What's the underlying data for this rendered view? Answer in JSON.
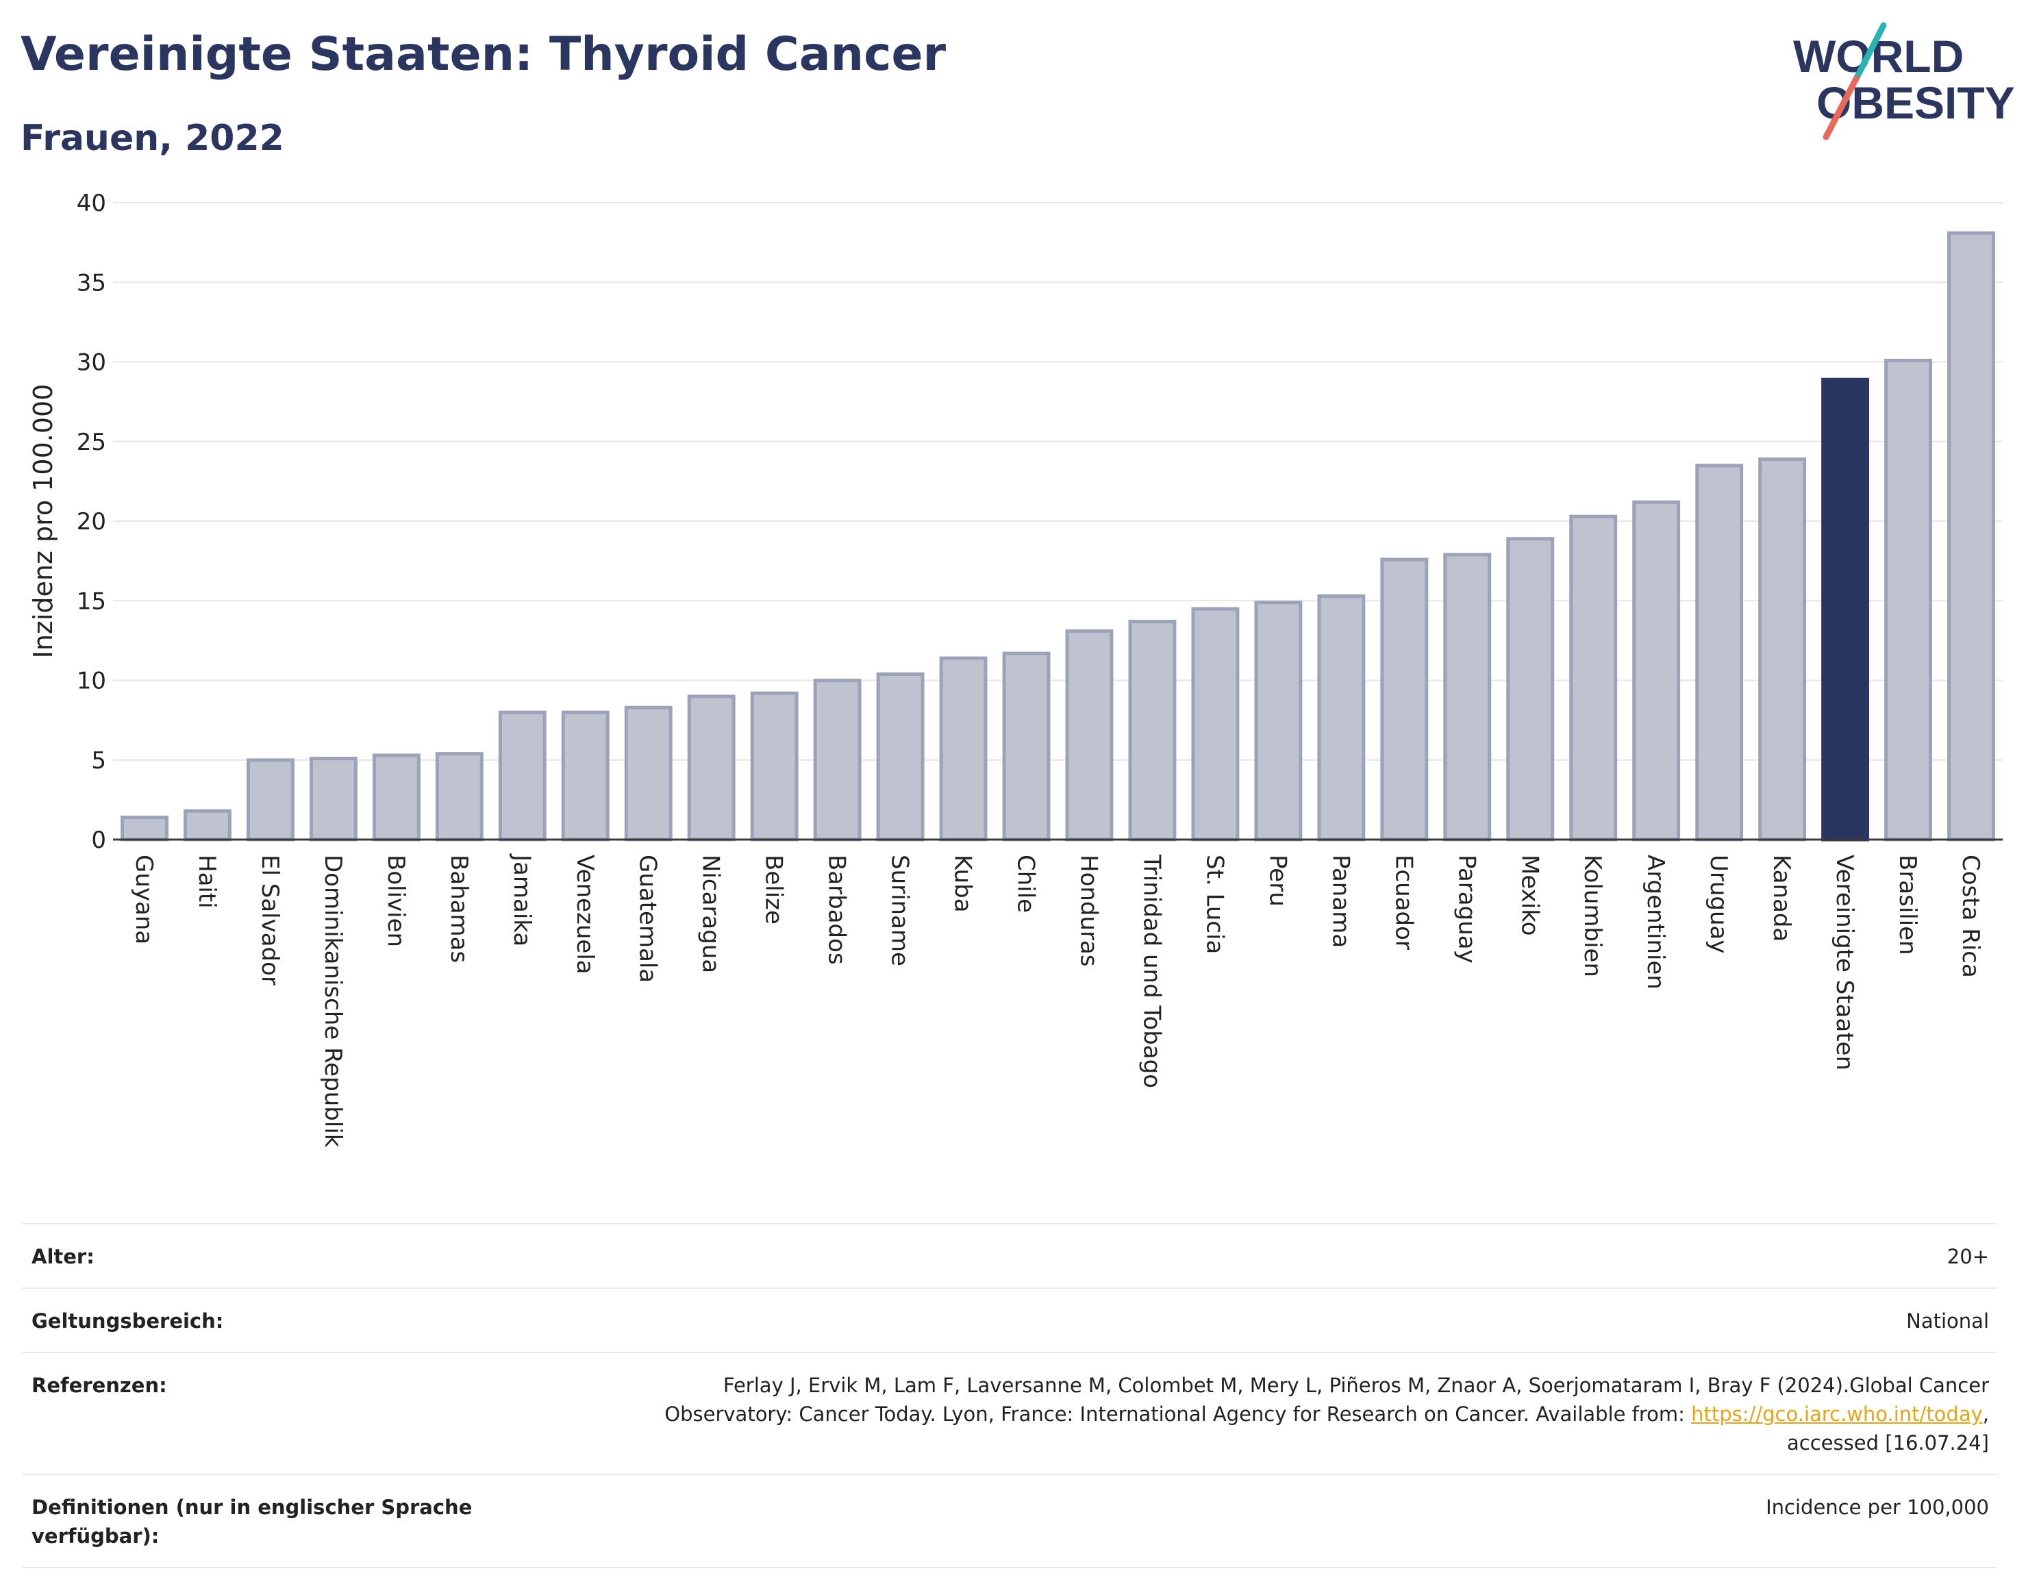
{
  "header": {
    "title": "Vereinigte Staaten: Thyroid Cancer",
    "subtitle": "Frauen, 2022"
  },
  "logo": {
    "line1": "WORLD",
    "line2": "OBESITY"
  },
  "colors": {
    "highlight_bar": "#2b3660",
    "other_bar_fill": "#bfc3d0",
    "other_bar_stroke": "#9ca2b8",
    "title": "#2b3660",
    "link": "#e8a317",
    "logo_teal": "#2ab3b3",
    "logo_coral": "#e8685a"
  },
  "chart_data": {
    "type": "bar",
    "ylabel": "Inzidenz pro 100.000",
    "ylim": [
      0,
      40
    ],
    "yticks": [
      0,
      5,
      10,
      15,
      20,
      25,
      30,
      35,
      40
    ],
    "grid": true,
    "highlight": "Vereinigte Staaten",
    "categories": [
      "Guyana",
      "Haiti",
      "El Salvador",
      "Dominikanische Republik",
      "Bolivien",
      "Bahamas",
      "Jamaika",
      "Venezuela",
      "Guatemala",
      "Nicaragua",
      "Belize",
      "Barbados",
      "Suriname",
      "Kuba",
      "Chile",
      "Honduras",
      "Trinidad und Tobago",
      "St. Lucia",
      "Peru",
      "Panama",
      "Ecuador",
      "Paraguay",
      "Mexiko",
      "Kolumbien",
      "Argentinien",
      "Uruguay",
      "Kanada",
      "Vereinigte Staaten",
      "Brasilien",
      "Costa Rica"
    ],
    "values": [
      1.5,
      1.9,
      5.1,
      5.2,
      5.4,
      5.5,
      8.1,
      8.1,
      8.4,
      9.1,
      9.3,
      10.1,
      10.5,
      11.5,
      11.8,
      13.2,
      13.8,
      14.6,
      15.0,
      15.4,
      17.7,
      18.0,
      19.0,
      20.4,
      21.3,
      23.6,
      24.0,
      29.0,
      30.2,
      38.2
    ]
  },
  "meta": {
    "age_label": "Alter:",
    "age_value": "20+",
    "scope_label": "Geltungsbereich:",
    "scope_value": "National",
    "refs_label": "Referenzen:",
    "refs_text_1": "Ferlay J, Ervik M, Lam F, Laversanne M, Colombet M, Mery L, Piñeros M, Znaor A, Soerjomataram I, Bray F (2024).Global Cancer",
    "refs_text_2": "Observatory: Cancer Today. Lyon, France: International Agency for Research on Cancer. Available from: ",
    "refs_link": "https://gco.iarc.who.int/today",
    "refs_text_3": ",",
    "refs_text_4": "accessed [16.07.24]",
    "defs_label": "Definitionen (nur in englischer Sprache verfügbar):",
    "defs_value": "Incidence per 100,000"
  }
}
